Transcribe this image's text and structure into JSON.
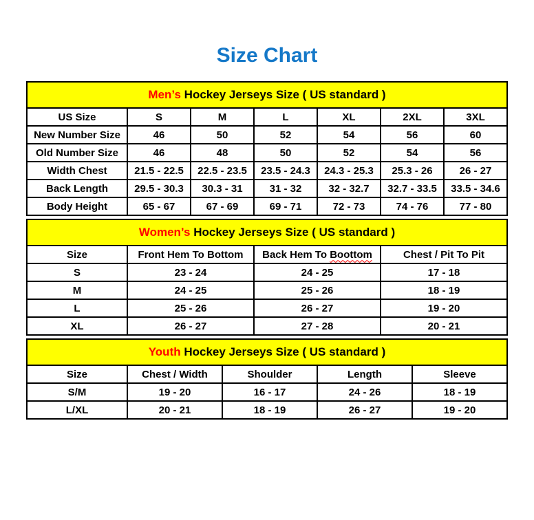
{
  "page": {
    "title": "Size Chart"
  },
  "colors": {
    "title_blue": "#1578c8",
    "banner_yellow": "#ffff00",
    "accent_red": "#ff0000",
    "border_black": "#000000"
  },
  "sections": [
    {
      "id": "mens",
      "banner": {
        "highlight": "Men’s",
        "rest": " Hockey Jerseys Size ( US standard )"
      },
      "columns": [
        "US Size",
        "S",
        "M",
        "L",
        "XL",
        "2XL",
        "3XL"
      ],
      "rows": [
        {
          "label": "New Number Size",
          "values": [
            "46",
            "50",
            "52",
            "54",
            "56",
            "60"
          ]
        },
        {
          "label": "Old Number Size",
          "values": [
            "46",
            "48",
            "50",
            "52",
            "54",
            "56"
          ]
        },
        {
          "label": "Width Chest",
          "values": [
            "21.5 - 22.5",
            "22.5 - 23.5",
            "23.5 - 24.3",
            "24.3 - 25.3",
            "25.3 - 26",
            "26 - 27"
          ]
        },
        {
          "label": "Back Length",
          "values": [
            "29.5 - 30.3",
            "30.3 - 31",
            "31 - 32",
            "32 - 32.7",
            "32.7 - 33.5",
            "33.5 - 34.6"
          ]
        },
        {
          "label": "Body Height",
          "values": [
            "65 - 67",
            "67 - 69",
            "69 - 71",
            "72 - 73",
            "74 - 76",
            "77 - 80"
          ]
        }
      ]
    },
    {
      "id": "womens",
      "banner": {
        "highlight": "Women’s",
        "rest": " Hockey Jerseys Size ( US standard )"
      },
      "columns": [
        "Size",
        "Front Hem To Bottom",
        "Back Hem To Boottom",
        "Chest / Pit To Pit"
      ],
      "squiggle": {
        "column_index": 2,
        "word": "Boottom"
      },
      "rows": [
        {
          "label": "S",
          "values": [
            "23 - 24",
            "24 - 25",
            "17 - 18"
          ]
        },
        {
          "label": "M",
          "values": [
            "24 - 25",
            "25 - 26",
            "18 - 19"
          ]
        },
        {
          "label": "L",
          "values": [
            "25 - 26",
            "26 - 27",
            "19 - 20"
          ]
        },
        {
          "label": "XL",
          "values": [
            "26 - 27",
            "27 - 28",
            "20 - 21"
          ]
        }
      ]
    },
    {
      "id": "youth",
      "banner": {
        "highlight": "Youth",
        "rest": " Hockey Jerseys Size ( US standard )"
      },
      "columns": [
        "Size",
        "Chest / Width",
        "Shoulder",
        "Length",
        "Sleeve"
      ],
      "rows": [
        {
          "label": "S/M",
          "values": [
            "19 - 20",
            "16 - 17",
            "24 - 26",
            "18 - 19"
          ]
        },
        {
          "label": "L/XL",
          "values": [
            "20 - 21",
            "18 - 19",
            "26 - 27",
            "19 - 20"
          ]
        }
      ]
    }
  ]
}
